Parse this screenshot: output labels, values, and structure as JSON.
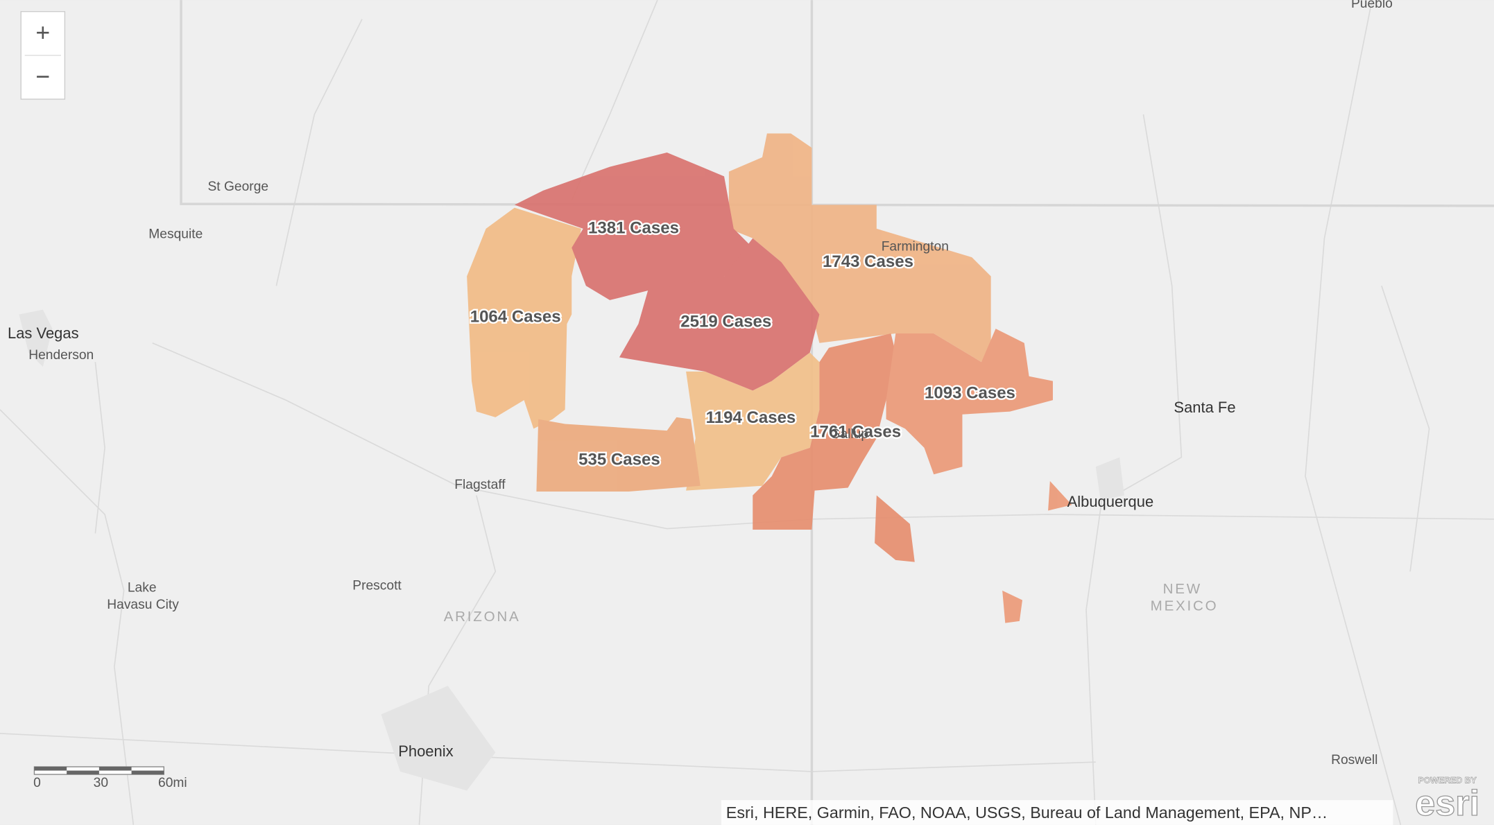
{
  "zoom": {
    "zoom_in": "+",
    "zoom_out": "−"
  },
  "places": {
    "pueblo": "Pueblo",
    "st_george": "St George",
    "mesquite": "Mesquite",
    "las_vegas": "Las Vegas",
    "henderson": "Henderson",
    "farmington": "Farmington",
    "santa_fe": "Santa Fe",
    "albuquerque": "Albuquerque",
    "flagstaff": "Flagstaff",
    "gallup": "Gallup",
    "lake_havasu": [
      "Lake",
      "Havasu City"
    ],
    "prescott": "Prescott",
    "phoenix": "Phoenix",
    "roswell": "Roswell"
  },
  "state_labels": {
    "arizona": "ARIZONA",
    "new_mexico": [
      "NEW",
      "MEXICO"
    ]
  },
  "regions": [
    {
      "label": "1381 Cases"
    },
    {
      "label": "2519 Cases"
    },
    {
      "label": "1743 Cases"
    },
    {
      "label": "1064 Cases"
    },
    {
      "label": "1194 Cases"
    },
    {
      "label": "535 Cases"
    },
    {
      "label": "1761 Cases"
    },
    {
      "label": "1093 Cases"
    }
  ],
  "scale": {
    "labels": [
      "0",
      "30",
      "60mi"
    ]
  },
  "attribution": "Esri, HERE, Garmin, FAO, NOAA, USGS, Bureau of Land Management, EPA, NP…",
  "logo": {
    "top": "POWERED BY",
    "name": "esri"
  }
}
